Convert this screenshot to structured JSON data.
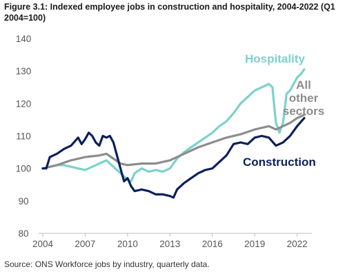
{
  "title": "Figure 3.1: Indexed employee jobs in construction and hospitality, 2004-2022 (Q1 2004=100)",
  "source": "Source: ONS Workforce jobs by industry, quarterly data.",
  "colors": {
    "hospitality": "#79d3c9",
    "all_other": "#8c8c8c",
    "construction": "#0b1f5c",
    "axis": "#bfbfbf"
  },
  "chart_data": {
    "type": "line",
    "title": "Figure 3.1: Indexed employee jobs in construction and hospitality, 2004-2022 (Q1 2004=100)",
    "xlabel": "",
    "ylabel": "",
    "xlim": [
      2004,
      2022.75
    ],
    "ylim": [
      80,
      140
    ],
    "x_ticks": [
      "2004",
      "2007",
      "2010",
      "2013",
      "2016",
      "2019",
      "2022"
    ],
    "y_ticks": [
      "80",
      "90",
      "100",
      "110",
      "120",
      "130",
      "140"
    ],
    "grid": false,
    "legend": "inline labels at line ends",
    "series": [
      {
        "name": "Hospitality",
        "color": "#79d3c9",
        "labels": [
          "Hospitality"
        ],
        "points": [
          [
            2004.0,
            100
          ],
          [
            2004.5,
            100.5
          ],
          [
            2005.0,
            101
          ],
          [
            2005.5,
            101
          ],
          [
            2006.0,
            100.5
          ],
          [
            2006.5,
            100
          ],
          [
            2007.0,
            99.5
          ],
          [
            2007.5,
            100.5
          ],
          [
            2008.0,
            101.5
          ],
          [
            2008.5,
            102.5
          ],
          [
            2009.0,
            100.5
          ],
          [
            2009.5,
            98.5
          ],
          [
            2010.0,
            96.5
          ],
          [
            2010.25,
            96
          ],
          [
            2010.5,
            98.5
          ],
          [
            2011.0,
            100
          ],
          [
            2011.5,
            99
          ],
          [
            2012.0,
            99.5
          ],
          [
            2012.5,
            99
          ],
          [
            2013.0,
            100
          ],
          [
            2013.5,
            103
          ],
          [
            2014.0,
            105
          ],
          [
            2014.5,
            106.5
          ],
          [
            2015.0,
            108
          ],
          [
            2015.5,
            109.5
          ],
          [
            2016.0,
            111
          ],
          [
            2016.5,
            113
          ],
          [
            2017.0,
            114.5
          ],
          [
            2017.5,
            117
          ],
          [
            2018.0,
            120
          ],
          [
            2018.5,
            122
          ],
          [
            2019.0,
            124
          ],
          [
            2019.5,
            125
          ],
          [
            2020.0,
            126
          ],
          [
            2020.25,
            125
          ],
          [
            2020.5,
            114
          ],
          [
            2020.75,
            111
          ],
          [
            2021.0,
            114
          ],
          [
            2021.25,
            123
          ],
          [
            2021.5,
            124
          ],
          [
            2021.75,
            126
          ],
          [
            2022.0,
            128
          ],
          [
            2022.25,
            129
          ],
          [
            2022.5,
            130.5
          ]
        ]
      },
      {
        "name": "All other sectors",
        "color": "#8c8c8c",
        "labels": [
          "All",
          "other",
          "sectors"
        ],
        "points": [
          [
            2004.0,
            100
          ],
          [
            2005.0,
            101
          ],
          [
            2006.0,
            102.5
          ],
          [
            2007.0,
            103.5
          ],
          [
            2008.0,
            104
          ],
          [
            2008.5,
            104.5
          ],
          [
            2009.0,
            103
          ],
          [
            2009.5,
            101.5
          ],
          [
            2010.0,
            101
          ],
          [
            2011.0,
            101.5
          ],
          [
            2012.0,
            101.5
          ],
          [
            2012.5,
            102
          ],
          [
            2013.0,
            102.5
          ],
          [
            2014.0,
            104.5
          ],
          [
            2015.0,
            106.5
          ],
          [
            2016.0,
            108
          ],
          [
            2017.0,
            109.5
          ],
          [
            2018.0,
            110.5
          ],
          [
            2019.0,
            112
          ],
          [
            2020.0,
            113
          ],
          [
            2020.5,
            112
          ],
          [
            2021.0,
            113
          ],
          [
            2021.5,
            114
          ],
          [
            2022.0,
            115.5
          ],
          [
            2022.5,
            116.5
          ]
        ]
      },
      {
        "name": "Construction",
        "color": "#0b1f5c",
        "labels": [
          "Construction"
        ],
        "points": [
          [
            2004.0,
            100
          ],
          [
            2004.25,
            100
          ],
          [
            2004.5,
            103.5
          ],
          [
            2004.75,
            104
          ],
          [
            2005.0,
            104.5
          ],
          [
            2005.5,
            106
          ],
          [
            2006.0,
            107
          ],
          [
            2006.5,
            109.5
          ],
          [
            2006.75,
            107.5
          ],
          [
            2007.0,
            109
          ],
          [
            2007.25,
            111
          ],
          [
            2007.5,
            110
          ],
          [
            2007.75,
            108
          ],
          [
            2008.0,
            107
          ],
          [
            2008.25,
            110
          ],
          [
            2008.5,
            109.5
          ],
          [
            2008.75,
            110
          ],
          [
            2009.0,
            108
          ],
          [
            2009.25,
            104
          ],
          [
            2009.5,
            100
          ],
          [
            2009.75,
            96
          ],
          [
            2010.0,
            97
          ],
          [
            2010.25,
            94.5
          ],
          [
            2010.5,
            93
          ],
          [
            2011.0,
            93.5
          ],
          [
            2011.5,
            93
          ],
          [
            2012.0,
            92
          ],
          [
            2012.5,
            92
          ],
          [
            2013.0,
            91.5
          ],
          [
            2013.25,
            91
          ],
          [
            2013.5,
            93.5
          ],
          [
            2014.0,
            95.5
          ],
          [
            2014.5,
            97
          ],
          [
            2015.0,
            98.5
          ],
          [
            2015.5,
            99.5
          ],
          [
            2016.0,
            100
          ],
          [
            2016.5,
            102
          ],
          [
            2017.0,
            104
          ],
          [
            2017.5,
            107.5
          ],
          [
            2018.0,
            108
          ],
          [
            2018.5,
            107.5
          ],
          [
            2019.0,
            109.5
          ],
          [
            2019.5,
            110
          ],
          [
            2020.0,
            109.5
          ],
          [
            2020.5,
            107
          ],
          [
            2020.75,
            107.5
          ],
          [
            2021.0,
            108
          ],
          [
            2021.5,
            110
          ],
          [
            2022.0,
            113
          ],
          [
            2022.5,
            115.5
          ]
        ]
      }
    ]
  }
}
